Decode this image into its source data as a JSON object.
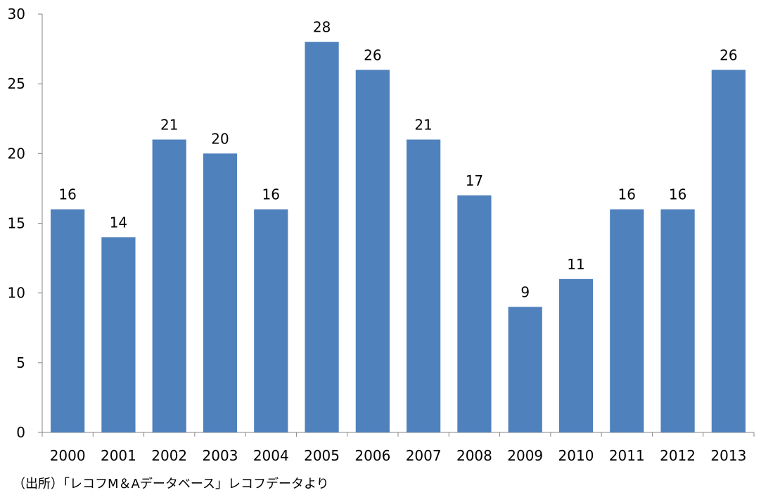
{
  "chart_data": {
    "type": "bar",
    "categories": [
      "2000",
      "2001",
      "2002",
      "2003",
      "2004",
      "2005",
      "2006",
      "2007",
      "2008",
      "2009",
      "2010",
      "2011",
      "2012",
      "2013"
    ],
    "values": [
      16,
      14,
      21,
      20,
      16,
      28,
      26,
      21,
      17,
      9,
      11,
      16,
      16,
      26
    ],
    "ylim": [
      0,
      30
    ],
    "yticks": [
      0,
      5,
      10,
      15,
      20,
      25,
      30
    ],
    "grid": false,
    "data_labels": true,
    "bar_color": "#4f81bd"
  },
  "source_note": "（出所）「レコフM＆Aデータベース」レコフデータより"
}
